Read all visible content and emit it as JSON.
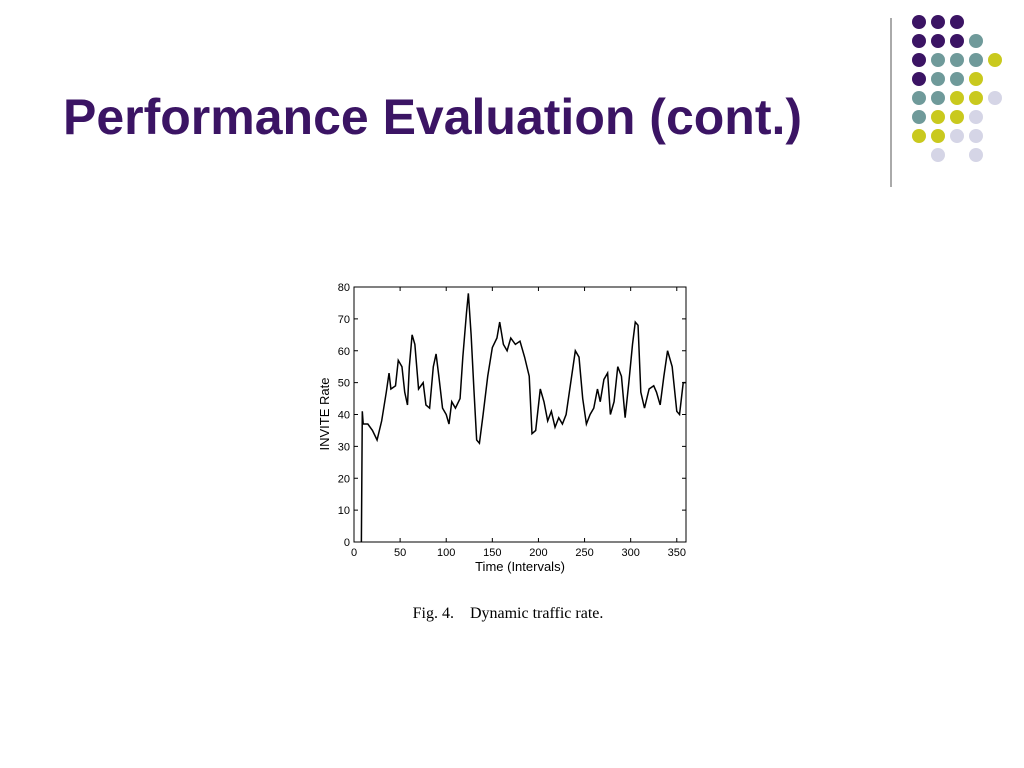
{
  "slide": {
    "title": "Performance Evaluation (cont.)"
  },
  "chart_data": {
    "type": "line",
    "xlabel": "Time (Intervals)",
    "ylabel": "INVITE Rate",
    "caption": "Fig. 4.    Dynamic traffic rate.",
    "color": "#000000",
    "x": [
      8,
      9,
      10,
      15,
      20,
      25,
      30,
      35,
      38,
      40,
      45,
      48,
      52,
      55,
      58,
      60,
      63,
      66,
      70,
      75,
      78,
      82,
      86,
      89,
      92,
      96,
      100,
      103,
      106,
      110,
      115,
      118,
      122,
      124,
      127,
      130,
      133,
      136,
      140,
      145,
      150,
      155,
      158,
      162,
      166,
      170,
      175,
      180,
      185,
      190,
      193,
      197,
      202,
      206,
      210,
      214,
      218,
      222,
      226,
      230,
      235,
      240,
      244,
      248,
      252,
      256,
      260,
      264,
      267,
      271,
      275,
      278,
      282,
      286,
      290,
      294,
      298,
      302,
      305,
      308,
      311,
      315,
      320,
      325,
      328,
      332,
      336,
      340,
      345,
      350,
      353,
      357,
      360
    ],
    "values": [
      0,
      41,
      37,
      37,
      35,
      32,
      38,
      47,
      53,
      48,
      49,
      57,
      55,
      47,
      43,
      55,
      65,
      62,
      48,
      50,
      43,
      42,
      55,
      59,
      52,
      42,
      40,
      37,
      44,
      42,
      45,
      58,
      72,
      78,
      65,
      48,
      32,
      31,
      40,
      52,
      61,
      64,
      69,
      62,
      60,
      64,
      62,
      63,
      58,
      52,
      34,
      35,
      48,
      44,
      38,
      41,
      36,
      39,
      37,
      40,
      50,
      60,
      58,
      45,
      37,
      40,
      42,
      48,
      44,
      51,
      53,
      40,
      44,
      55,
      52,
      39,
      50,
      62,
      69,
      68,
      47,
      42,
      48,
      49,
      47,
      43,
      52,
      60,
      55,
      41,
      40,
      50,
      50
    ],
    "xlim": [
      0,
      360
    ],
    "ylim": [
      0,
      80
    ],
    "xticks": [
      0,
      50,
      100,
      150,
      200,
      250,
      300,
      350
    ],
    "yticks": [
      0,
      10,
      20,
      30,
      40,
      50,
      60,
      70,
      80
    ]
  }
}
